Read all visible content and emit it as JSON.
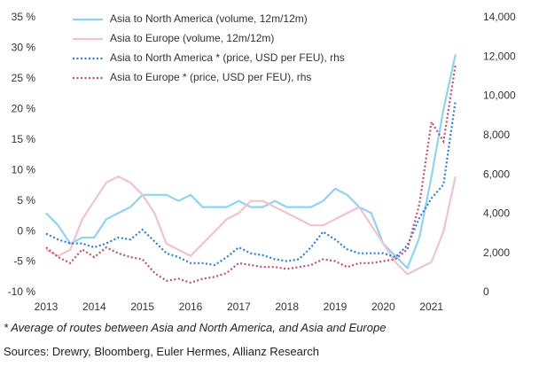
{
  "chart_data": {
    "type": "line",
    "x": [
      2013,
      2013.25,
      2013.5,
      2013.75,
      2014,
      2014.25,
      2014.5,
      2014.75,
      2015,
      2015.25,
      2015.5,
      2015.75,
      2016,
      2016.25,
      2016.5,
      2016.75,
      2017,
      2017.25,
      2017.5,
      2017.75,
      2018,
      2018.25,
      2018.5,
      2018.75,
      2019,
      2019.25,
      2019.5,
      2019.75,
      2020,
      2020.25,
      2020.5,
      2020.75,
      2021,
      2021.25,
      2021.5
    ],
    "series": [
      {
        "name": "Asia to North America (volume, 12m/12m)",
        "color": "#8fd3f0",
        "dashed": false,
        "values": [
          3,
          1,
          -2,
          -1,
          -1,
          2,
          3,
          4,
          6,
          6,
          6,
          5,
          6,
          4,
          4,
          4,
          5,
          4,
          4,
          5,
          4,
          4,
          4,
          5,
          7,
          6,
          4,
          3,
          -2,
          -4,
          -6,
          -1,
          9,
          20,
          29
        ]
      },
      {
        "name": "Asia to Europe (volume, 12m/12m)",
        "color": "#f2c1d0",
        "dashed": false,
        "values": [
          -3,
          -4,
          -3,
          2,
          5,
          8,
          9,
          8,
          6,
          3,
          -2,
          -3,
          -4,
          -2,
          0,
          2,
          3,
          5,
          5,
          4,
          3,
          2,
          1,
          1,
          2,
          3,
          4,
          1,
          -2,
          -5,
          -7,
          -6,
          -5,
          0,
          9
        ]
      },
      {
        "name": "Asia to North America * (price, USD per FEU), rhs",
        "color": "#2a7fd4",
        "dashed": true,
        "axis": "y2",
        "values": [
          3000,
          2700,
          2500,
          2500,
          2300,
          2500,
          2800,
          2700,
          3200,
          2600,
          2000,
          1800,
          1500,
          1500,
          1400,
          1800,
          2300,
          2000,
          1900,
          1700,
          1600,
          1700,
          2300,
          3100,
          2700,
          2200,
          2000,
          2000,
          2000,
          1800,
          2400,
          3800,
          4800,
          5500,
          9800
        ]
      },
      {
        "name": "Asia to Europe * (price, USD per FEU), rhs",
        "color": "#c0506e",
        "dashed": true,
        "axis": "y2",
        "values": [
          2300,
          1800,
          1500,
          2200,
          1800,
          2300,
          2000,
          1800,
          1700,
          1000,
          600,
          700,
          500,
          700,
          800,
          1000,
          1500,
          1400,
          1300,
          1300,
          1200,
          1300,
          1400,
          1700,
          1600,
          1300,
          1500,
          1500,
          1600,
          1700,
          2200,
          4500,
          8700,
          7700,
          11600
        ]
      }
    ],
    "xlim": [
      2013,
      2022
    ],
    "xticks": [
      2013,
      2014,
      2015,
      2016,
      2017,
      2018,
      2019,
      2020,
      2021
    ],
    "ylim": [
      -10,
      35
    ],
    "yticks": [
      {
        "value": 35,
        "label": "35 %"
      },
      {
        "value": 30,
        "label": "30 %"
      },
      {
        "value": 25,
        "label": "25 %"
      },
      {
        "value": 20,
        "label": "20 %"
      },
      {
        "value": 15,
        "label": "15 %"
      },
      {
        "value": 10,
        "label": "10 %"
      },
      {
        "value": 5,
        "label": "5 %"
      },
      {
        "value": 0,
        "label": "0 %"
      },
      {
        "value": -5,
        "label": "-5 %"
      },
      {
        "value": -10,
        "label": "-10 %"
      }
    ],
    "y2lim": [
      0,
      14000
    ],
    "y2ticks": [
      0,
      {
        "value": 2000,
        "label": "2,000"
      },
      {
        "value": 4000,
        "label": "4,000"
      },
      {
        "value": 6000,
        "label": "6,000"
      },
      {
        "value": 8000,
        "label": "8,000"
      },
      {
        "value": 10000,
        "label": "10,000"
      },
      {
        "value": 12000,
        "label": "12,000"
      },
      {
        "value": 14000,
        "label": "14,000"
      }
    ],
    "footnote": "* Average of routes between Asia and North America, and Asia and Europe",
    "source": "Sources: Drewry, Bloomberg, Euler Hermes, Allianz Research"
  }
}
